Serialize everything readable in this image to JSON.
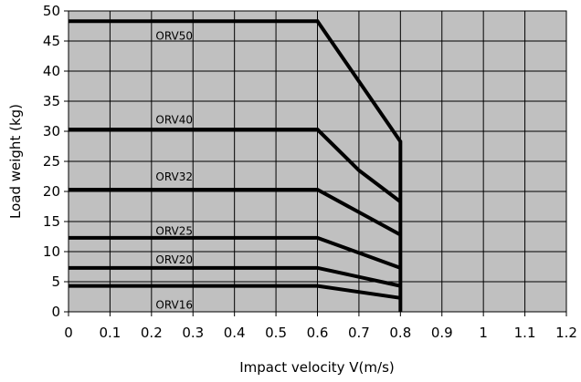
{
  "chart_data": {
    "type": "line",
    "xlabel": "Impact velocity V(m/s)",
    "ylabel": "Load weight (kg)",
    "xlim": [
      0,
      1.2
    ],
    "ylim": [
      0,
      50
    ],
    "x_ticks": [
      0,
      0.1,
      0.2,
      0.3,
      0.4,
      0.5,
      0.6,
      0.7,
      0.8,
      0.9,
      1,
      1.1,
      1.2
    ],
    "y_ticks": [
      0,
      5,
      10,
      15,
      20,
      25,
      30,
      35,
      40,
      45,
      50
    ],
    "grid": true,
    "plot_background": "#c0c0c0",
    "line_color": "#000000",
    "series": [
      {
        "name": "ORV50",
        "x": [
          0,
          0.6,
          0.8,
          0.8
        ],
        "y": [
          48.3,
          48.3,
          28.3,
          0
        ]
      },
      {
        "name": "ORV40",
        "x": [
          0,
          0.6,
          0.7,
          0.8
        ],
        "y": [
          30.3,
          30.3,
          23.5,
          18.3
        ]
      },
      {
        "name": "ORV32",
        "x": [
          0,
          0.6,
          0.8
        ],
        "y": [
          20.3,
          20.3,
          12.8
        ]
      },
      {
        "name": "ORV25",
        "x": [
          0,
          0.6,
          0.8
        ],
        "y": [
          12.3,
          12.3,
          7.3
        ]
      },
      {
        "name": "ORV20",
        "x": [
          0,
          0.6,
          0.8
        ],
        "y": [
          7.3,
          7.3,
          4.3
        ]
      },
      {
        "name": "ORV16",
        "x": [
          0,
          0.6,
          0.8
        ],
        "y": [
          4.3,
          4.3,
          2.3
        ]
      }
    ],
    "annotations": [
      {
        "text": "ORV50",
        "x": 0.21,
        "y": 45.2
      },
      {
        "text": "ORV40",
        "x": 0.21,
        "y": 31.3
      },
      {
        "text": "ORV32",
        "x": 0.21,
        "y": 21.8
      },
      {
        "text": "ORV25",
        "x": 0.21,
        "y": 12.8
      },
      {
        "text": "ORV20",
        "x": 0.21,
        "y": 8.0
      },
      {
        "text": "ORV16",
        "x": 0.21,
        "y": 0.5
      }
    ]
  }
}
